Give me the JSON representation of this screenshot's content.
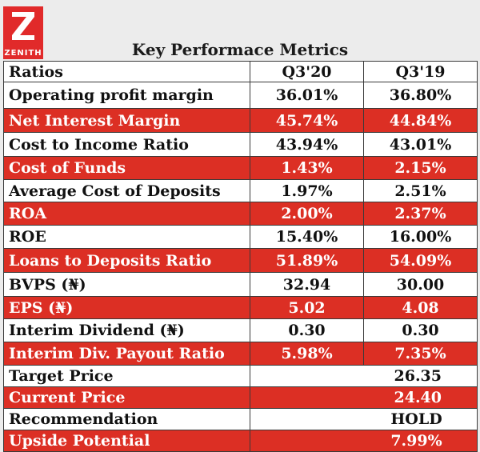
{
  "logo": {
    "text": "ZENITH",
    "color": "#e12a2a"
  },
  "title": "Key Performace Metrics",
  "colors": {
    "red_row": "#dc2f24",
    "white_row": "#ffffff",
    "border": "#3a3a3a"
  },
  "header": {
    "col1": "Ratios",
    "col2": "Q3'20",
    "col3": "Q3'19"
  },
  "rows": [
    {
      "label": "Operating profit margin",
      "q3_20": "36.01%",
      "q3_19": "36.80%"
    },
    {
      "label": "Net Interest Margin",
      "q3_20": "45.74%",
      "q3_19": "44.84%"
    },
    {
      "label": "Cost to Income Ratio",
      "q3_20": "43.94%",
      "q3_19": "43.01%"
    },
    {
      "label": "Cost of Funds",
      "q3_20": "1.43%",
      "q3_19": "2.15%"
    },
    {
      "label": "Average Cost of Deposits",
      "q3_20": "1.97%",
      "q3_19": "2.51%"
    },
    {
      "label": "ROA",
      "q3_20": "2.00%",
      "q3_19": "2.37%"
    },
    {
      "label": "ROE",
      "q3_20": "15.40%",
      "q3_19": "16.00%"
    },
    {
      "label": "Loans to Deposits Ratio",
      "q3_20": "51.89%",
      "q3_19": "54.09%"
    },
    {
      "label": "BVPS (₦)",
      "q3_20": "32.94",
      "q3_19": "30.00"
    },
    {
      "label": "EPS (₦)",
      "q3_20": "5.02",
      "q3_19": "4.08"
    },
    {
      "label": "Interim Dividend (₦)",
      "q3_20": "0.30",
      "q3_19": "0.30"
    },
    {
      "label": "Interim Div. Payout Ratio",
      "q3_20": "5.98%",
      "q3_19": "7.35%"
    }
  ],
  "summary": {
    "target_price_label": "Target Price",
    "target_price_value": "26.35",
    "current_price_label": "Current Price",
    "current_price_value": "24.40",
    "recommendation_label": "Recommendation",
    "recommendation_value": "HOLD",
    "upside_label": "Upside Potential",
    "upside_value": "7.99%"
  }
}
